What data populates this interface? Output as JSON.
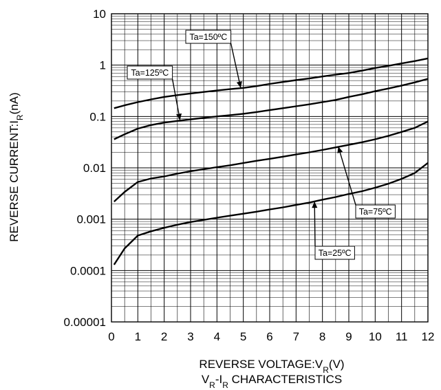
{
  "chart_data": {
    "type": "line",
    "xlabel": "REVERSE VOLTAGE:V_R(V)",
    "ylabel": "REVERSE CURRENT:I_R(nA)",
    "caption": "V_R-I_R CHARACTERISTICS",
    "xlim": [
      0,
      12
    ],
    "ylim": [
      1e-05,
      10
    ],
    "y_scale": "log",
    "grid": true,
    "x_ticks": [
      "0",
      "1",
      "2",
      "3",
      "4",
      "5",
      "6",
      "7",
      "8",
      "9",
      "10",
      "11",
      "12"
    ],
    "y_ticks": [
      {
        "value": 10,
        "label": "10"
      },
      {
        "value": 1,
        "label": "1"
      },
      {
        "value": 0.1,
        "label": "0.1"
      },
      {
        "value": 0.01,
        "label": "0.01"
      },
      {
        "value": 0.001,
        "label": "0.001"
      },
      {
        "value": 0.0001,
        "label": "0.0001"
      },
      {
        "value": 1e-05,
        "label": "0.00001"
      }
    ],
    "series": [
      {
        "name": "Ta=150ºC",
        "x": [
          0.1,
          0.5,
          1,
          1.5,
          2,
          2.5,
          3,
          3.5,
          4,
          4.5,
          5,
          5.5,
          6,
          6.5,
          7,
          7.5,
          8,
          8.5,
          9,
          9.5,
          10,
          10.5,
          11,
          11.5,
          12
        ],
        "y": [
          0.145,
          0.165,
          0.19,
          0.215,
          0.24,
          0.26,
          0.28,
          0.3,
          0.32,
          0.34,
          0.36,
          0.39,
          0.43,
          0.47,
          0.51,
          0.55,
          0.6,
          0.65,
          0.7,
          0.78,
          0.88,
          0.97,
          1.08,
          1.2,
          1.35
        ]
      },
      {
        "name": "Ta=125ºC",
        "x": [
          0.1,
          0.5,
          1,
          1.5,
          2,
          2.5,
          3,
          3.5,
          4,
          4.5,
          5,
          5.5,
          6,
          6.5,
          7,
          7.5,
          8,
          8.5,
          9,
          9.5,
          10,
          10.5,
          11,
          11.5,
          12
        ],
        "y": [
          0.036,
          0.045,
          0.058,
          0.068,
          0.076,
          0.082,
          0.088,
          0.094,
          0.1,
          0.106,
          0.113,
          0.122,
          0.133,
          0.145,
          0.158,
          0.172,
          0.19,
          0.21,
          0.24,
          0.27,
          0.31,
          0.35,
          0.4,
          0.46,
          0.54
        ]
      },
      {
        "name": "Ta=75ºC",
        "x": [
          0.1,
          0.5,
          1,
          1.5,
          2,
          2.5,
          3,
          3.5,
          4,
          4.5,
          5,
          5.5,
          6,
          6.5,
          7,
          7.5,
          8,
          8.5,
          9,
          9.5,
          10,
          10.5,
          11,
          11.5,
          12
        ],
        "y": [
          0.0022,
          0.0034,
          0.0053,
          0.0062,
          0.0068,
          0.0077,
          0.0086,
          0.0094,
          0.0103,
          0.0112,
          0.0124,
          0.0137,
          0.015,
          0.0165,
          0.0182,
          0.02,
          0.0223,
          0.025,
          0.028,
          0.0315,
          0.036,
          0.042,
          0.05,
          0.06,
          0.08
        ]
      },
      {
        "name": "Ta=25ºC",
        "x": [
          0.1,
          0.5,
          1,
          1.5,
          2,
          2.5,
          3,
          3.5,
          4,
          4.5,
          5,
          5.5,
          6,
          6.5,
          7,
          7.5,
          8,
          8.5,
          9,
          9.5,
          10,
          10.5,
          11,
          11.5,
          12
        ],
        "y": [
          0.00013,
          0.00027,
          0.00048,
          0.00058,
          0.00068,
          0.00078,
          0.00088,
          0.00097,
          0.00107,
          0.00117,
          0.00128,
          0.0014,
          0.00155,
          0.0017,
          0.0019,
          0.0021,
          0.0024,
          0.0027,
          0.0031,
          0.0035,
          0.0041,
          0.0049,
          0.0061,
          0.0079,
          0.0125
        ]
      }
    ],
    "annotations": [
      {
        "text": "Ta=150ºC",
        "series": "Ta=150ºC",
        "x": 4.9,
        "y": 0.36
      },
      {
        "text": "Ta=125ºC",
        "series": "Ta=125ºC",
        "x": 2.6,
        "y": 0.085
      },
      {
        "text": "Ta=75ºC",
        "series": "Ta=75ºC",
        "x": 8.6,
        "y": 0.026
      },
      {
        "text": "Ta=25ºC",
        "series": "Ta=25ºC",
        "x": 7.7,
        "y": 0.0022
      }
    ]
  }
}
